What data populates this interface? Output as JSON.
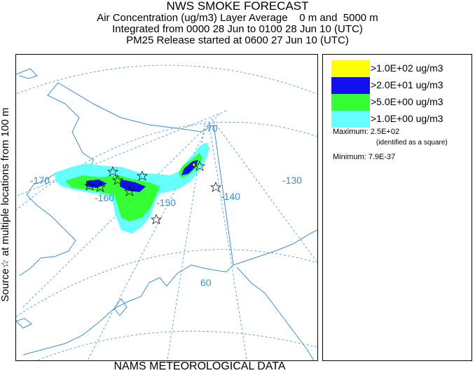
{
  "title": {
    "main": "NWS SMOKE FORECAST",
    "line2": "Air Concentration (ug/m3) Layer Average    0 m and  5000 m",
    "line3": "Integrated from 0000 28 Jun to 0100 28 Jun 10 (UTC)",
    "line4": "PM25 Release started at 0600 27 Jun 10 (UTC)"
  },
  "side_label": "Source☆ at multiple locations   from  100 m",
  "footer": "NAMS METEOROLOGICAL DATA",
  "map": {
    "longitude_labels": [
      "-170",
      "-160",
      "-150",
      "-140",
      "-130"
    ],
    "latitude_labels": [
      "70",
      "60"
    ],
    "colors": {
      "coast": "#3a8fd1",
      "grid": "#3a8fd1",
      "level1": "#66ffff",
      "level2": "#33ff33",
      "level3": "#1111ee",
      "level4": "#ffff00"
    }
  },
  "legend": {
    "items": [
      {
        "label": ">1.0E+02 ug/m3",
        "color": "#ffff00"
      },
      {
        "label": ">2.0E+01 ug/m3",
        "color": "#1111ee"
      },
      {
        "label": ">5.0E+00 ug/m3",
        "color": "#33ff33"
      },
      {
        "label": ">1.0E+00 ug/m3",
        "color": "#66ffff"
      }
    ],
    "maximum_label": "Maximum: 2.5E+02",
    "maximum_note": "(identified as a square)",
    "minimum_label": "Minimum: 7.9E-37"
  }
}
